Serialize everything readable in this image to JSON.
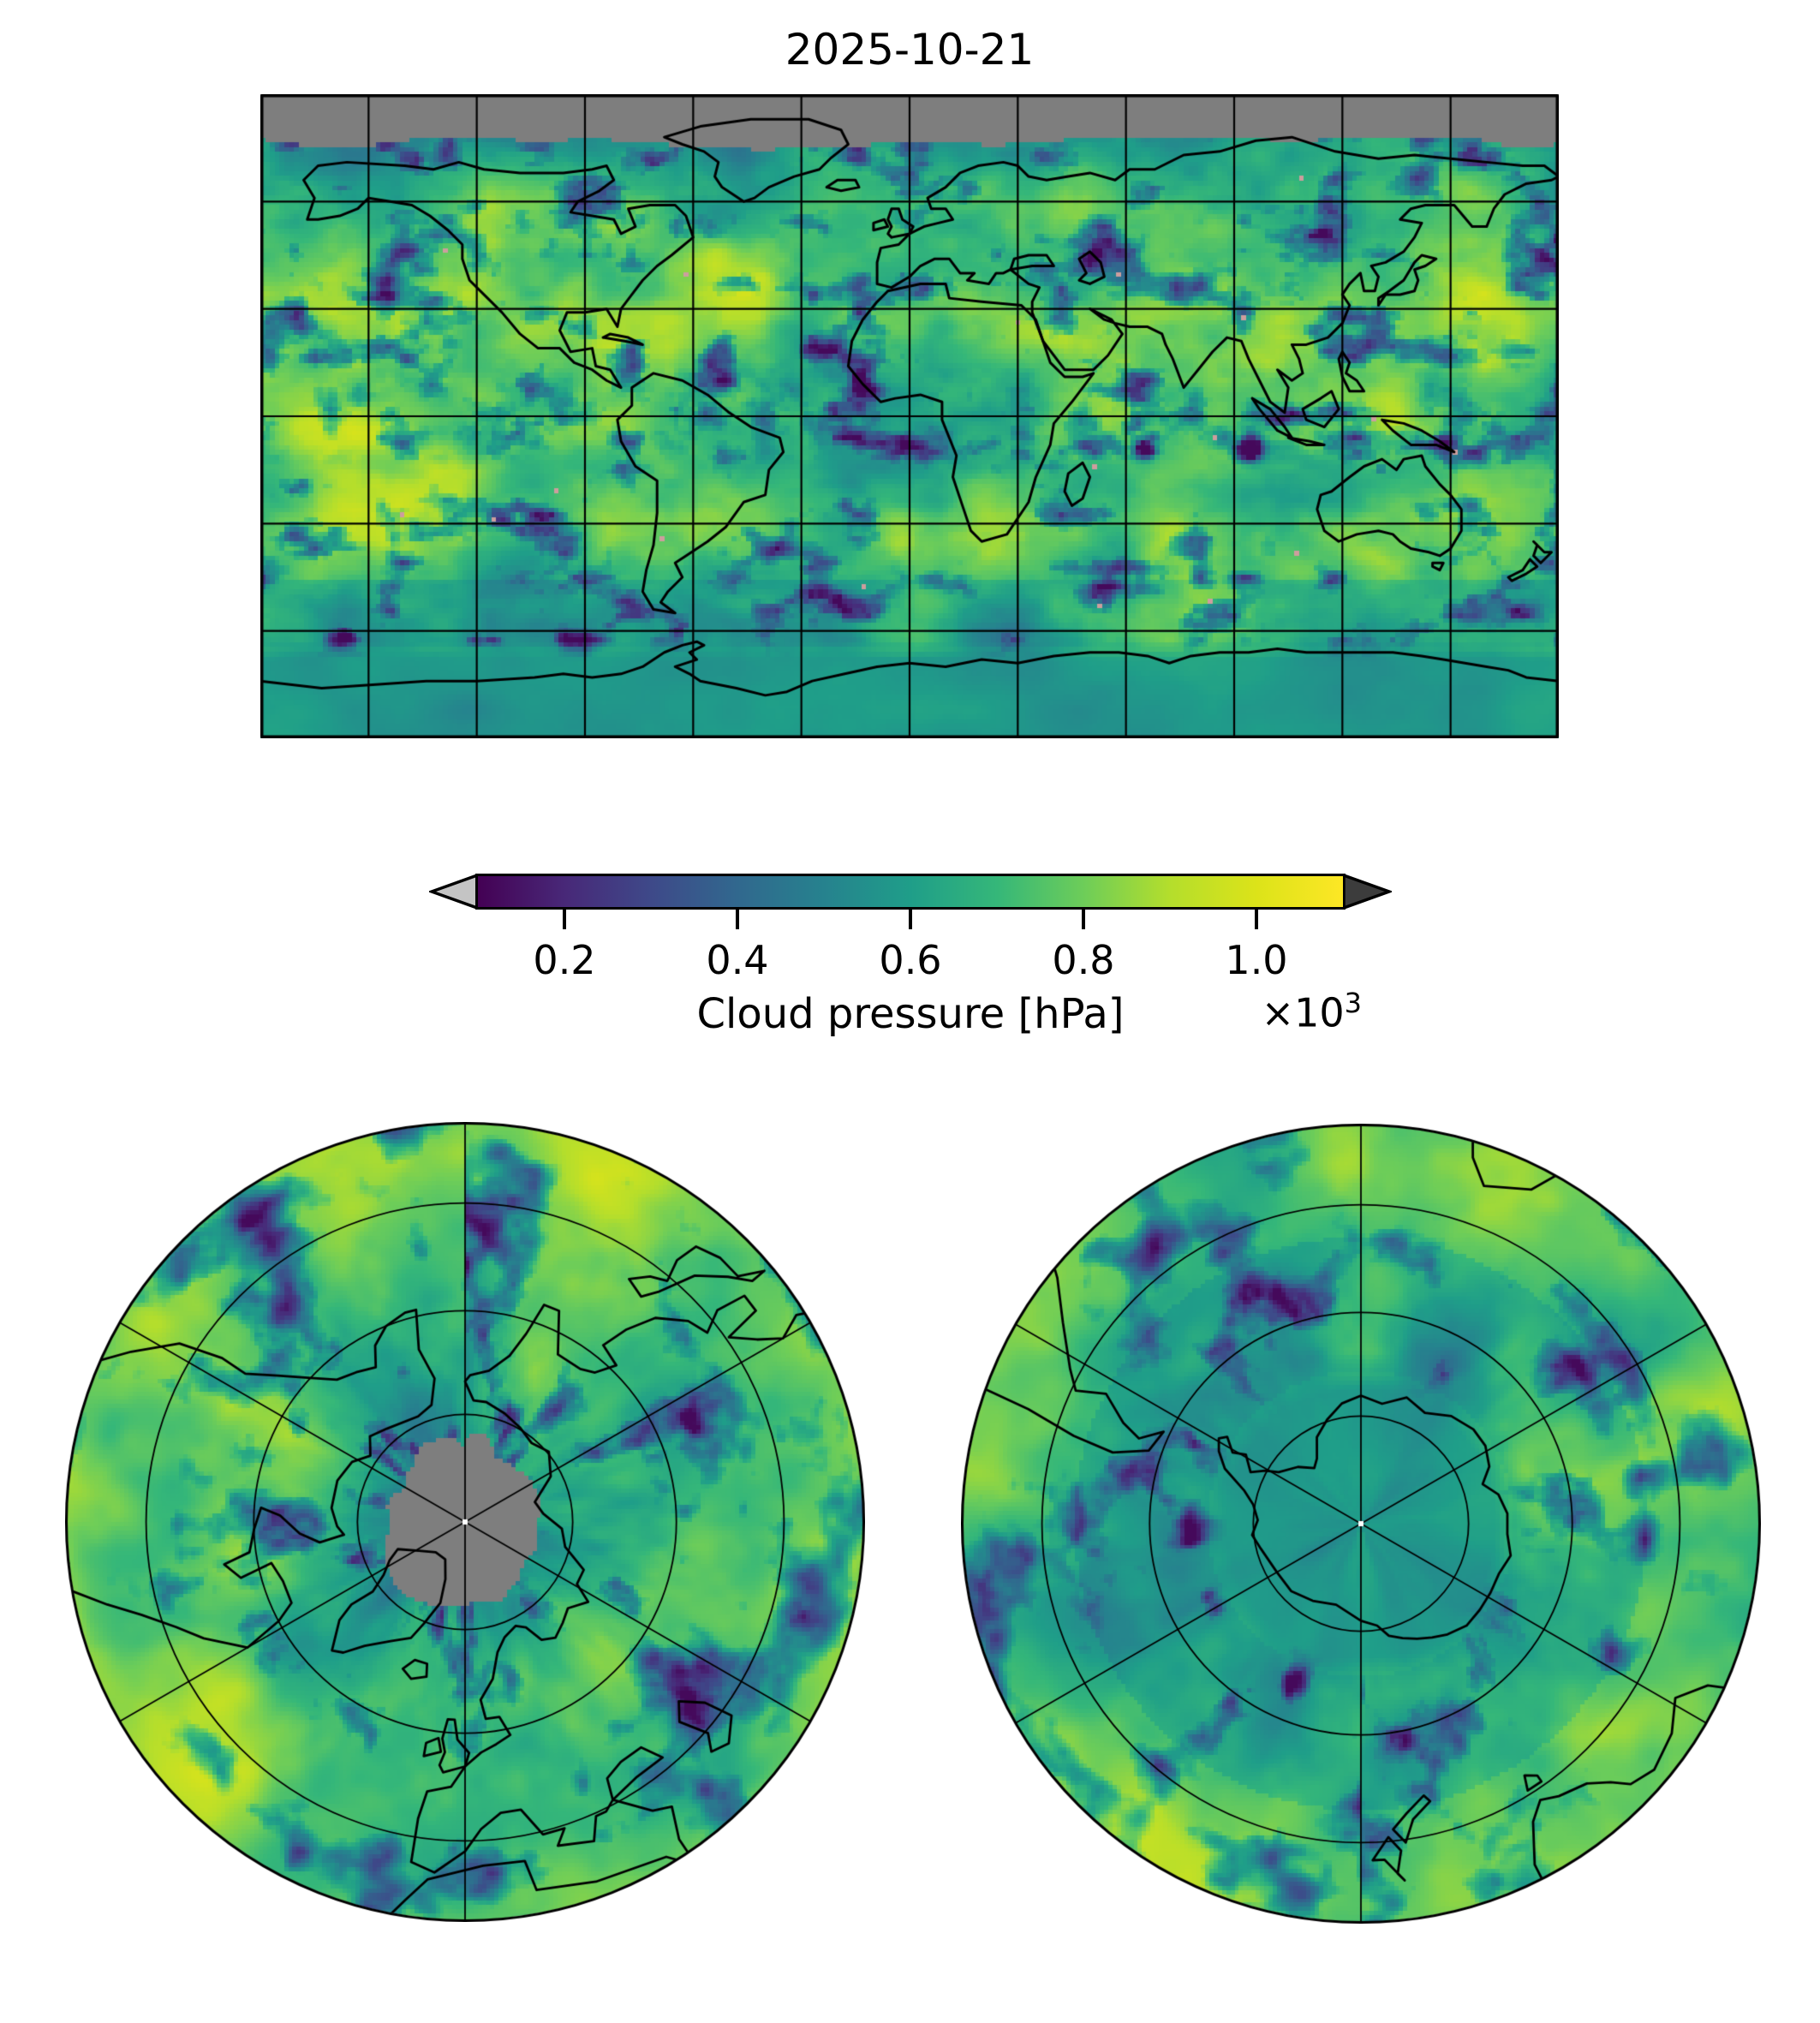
{
  "title": "2025-10-21",
  "colorbar": {
    "label": "Cloud pressure [hPa]",
    "offset_prefix": "×10",
    "offset_exponent": "3",
    "tick_labels": [
      "0.2",
      "0.4",
      "0.6",
      "0.8",
      "1.0"
    ],
    "tick_values": [
      0.2,
      0.4,
      0.6,
      0.8,
      1.0
    ],
    "vmin": 0.1,
    "vmax": 1.1,
    "extend": "both",
    "under_color": "#c4c4c4",
    "over_color": "#3c3c3c"
  },
  "chart_data": {
    "type": "heatmap",
    "title": "2025-10-21",
    "variable": "Cloud pressure",
    "units": "hPa",
    "scale_factor": "×10³",
    "colormap": "viridis",
    "colormap_stops": [
      "#440154",
      "#482878",
      "#3e4989",
      "#31688e",
      "#26828e",
      "#1f9e89",
      "#35b779",
      "#6dcd59",
      "#b4de2c",
      "#dce319",
      "#fde725"
    ],
    "value_range_x1000_hpa": [
      0.1,
      1.1
    ],
    "colorbar_ticks_x1000_hpa": [
      0.2,
      0.4,
      0.6,
      0.8,
      1.0
    ],
    "missing_data_color": "#7e7e7e",
    "coastline_color": "#000000",
    "gridline_color": "#000000",
    "panels": [
      {
        "name": "global-map",
        "projection": "equirectangular (PlateCarree)",
        "lon_range": [
          -180,
          180
        ],
        "lat_range": [
          -90,
          90
        ],
        "graticule_spacing_deg": {
          "lon": 30,
          "lat": 30
        },
        "notes": "Mostly green/yellow field (cloud pressure ~0.7-1.0 x10^3 hPa) with blue/purple high-cloud bands (~0.2-0.5); gray no-data band north of ~77N; two dark cyclonic vortices near 65E 9S and 95E 9S; smooth teal field over Antarctica south of the coastline"
      },
      {
        "name": "north-polar-map",
        "projection": "north polar stereographic",
        "boundary_latitude_deg": 30,
        "graticule": "meridians every 60 deg (3 full lines), 3 latitude circles at ~0.27, 0.53, 0.80 of radius",
        "notes": "gray no-data disk over the pole (~0.22 of radius) with irregular edge; white dot at pole; Arctic coastlines drawn in black"
      },
      {
        "name": "south-polar-map",
        "projection": "south polar stereographic",
        "boundary_latitude_deg": -30,
        "graticule": "meridians every 60 deg (3 full lines), 3 latitude circles at ~0.27, 0.53, 0.80 of radius",
        "notes": "Antarctica outlined in black with smooth darker teal interior; white dot at pole; tip of South America at upper left, New Zealand at bottom"
      }
    ]
  }
}
